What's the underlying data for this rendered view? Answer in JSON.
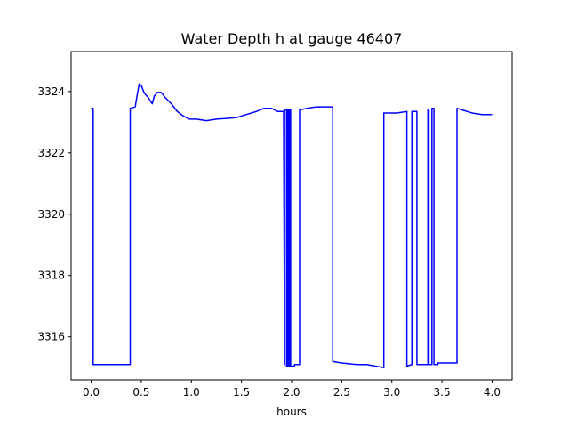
{
  "chart_data": {
    "type": "line",
    "title": "Water Depth h at gauge 46407",
    "xlabel": "hours",
    "ylabel": "",
    "xlim": [
      -0.2,
      4.2
    ],
    "ylim": [
      3314.6,
      3325.3
    ],
    "xticks": [
      0.0,
      0.5,
      1.0,
      1.5,
      2.0,
      2.5,
      3.0,
      3.5,
      4.0
    ],
    "xtick_labels": [
      "0.0",
      "0.5",
      "1.0",
      "1.5",
      "2.0",
      "2.5",
      "3.0",
      "3.5",
      "4.0"
    ],
    "yticks": [
      3316,
      3318,
      3320,
      3322,
      3324
    ],
    "ytick_labels": [
      "3316",
      "3318",
      "3320",
      "3322",
      "3324"
    ],
    "grid": false,
    "series": [
      {
        "color": "#0000ff",
        "x": [
          0.0,
          0.02,
          0.02,
          0.25,
          0.39,
          0.39,
          0.44,
          0.46,
          0.48,
          0.5,
          0.53,
          0.57,
          0.61,
          0.63,
          0.66,
          0.7,
          0.74,
          0.8,
          0.86,
          0.92,
          0.98,
          1.05,
          1.15,
          1.25,
          1.35,
          1.45,
          1.55,
          1.65,
          1.72,
          1.8,
          1.86,
          1.92,
          1.93,
          1.93,
          1.95,
          1.95,
          1.96,
          1.96,
          1.97,
          1.97,
          1.98,
          1.98,
          1.99,
          1.99,
          2.0,
          2.0,
          2.03,
          2.03,
          2.08,
          2.08,
          2.15,
          2.25,
          2.35,
          2.41,
          2.41,
          2.5,
          2.65,
          2.75,
          2.92,
          2.92,
          3.05,
          3.15,
          3.15,
          3.2,
          3.2,
          3.25,
          3.25,
          3.36,
          3.36,
          3.37,
          3.37,
          3.4,
          3.4,
          3.42,
          3.42,
          3.46,
          3.46,
          3.65,
          3.65,
          3.7,
          3.8,
          3.9,
          4.0
        ],
        "y": [
          3323.45,
          3323.45,
          3315.1,
          3315.1,
          3315.1,
          3323.45,
          3323.5,
          3323.9,
          3324.25,
          3324.2,
          3323.95,
          3323.8,
          3323.6,
          3323.85,
          3323.97,
          3323.97,
          3323.8,
          3323.6,
          3323.35,
          3323.2,
          3323.1,
          3323.1,
          3323.05,
          3323.1,
          3323.12,
          3323.15,
          3323.25,
          3323.35,
          3323.45,
          3323.45,
          3323.35,
          3323.35,
          3315.1,
          3323.4,
          3323.4,
          3315.05,
          3315.05,
          3323.4,
          3323.4,
          3315.05,
          3315.05,
          3323.4,
          3323.4,
          3315.05,
          3315.05,
          3315.05,
          3315.05,
          3315.1,
          3315.1,
          3323.4,
          3323.45,
          3323.5,
          3323.5,
          3323.5,
          3315.2,
          3315.15,
          3315.1,
          3315.1,
          3315.0,
          3323.3,
          3323.3,
          3323.35,
          3315.05,
          3315.1,
          3323.35,
          3323.35,
          3315.1,
          3315.1,
          3323.4,
          3323.4,
          3315.1,
          3315.1,
          3323.45,
          3323.45,
          3315.1,
          3315.1,
          3315.15,
          3315.15,
          3323.45,
          3323.4,
          3323.3,
          3323.25,
          3323.25
        ]
      }
    ]
  }
}
